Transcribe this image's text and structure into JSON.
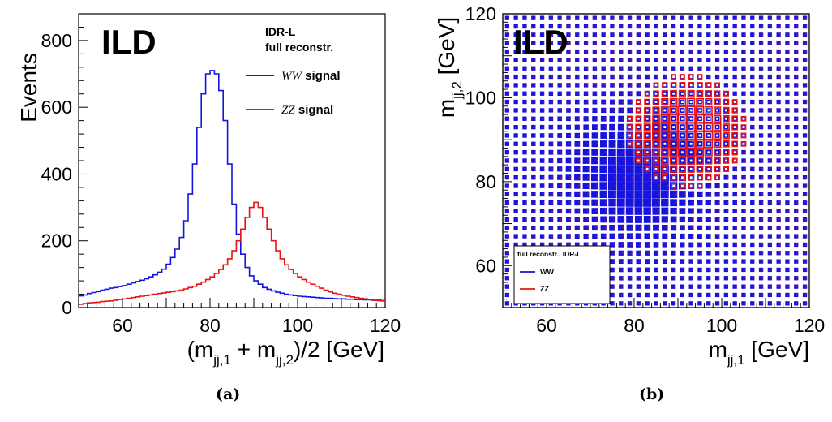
{
  "colors": {
    "ww": "#1414e0",
    "zz": "#e81414"
  },
  "chart_data": [
    {
      "type": "line",
      "panel": "(a)",
      "watermark": "ILD",
      "ylabel": "Events",
      "xlabel_parts": [
        "(m",
        "jj,1",
        " + m",
        "jj,2",
        ")/2 [GeV]"
      ],
      "xlim": [
        50,
        120
      ],
      "ylim": [
        0,
        880
      ],
      "xticks": [
        60,
        80,
        100,
        120
      ],
      "yticks": [
        0,
        200,
        400,
        600,
        800
      ],
      "legend": {
        "header1": "IDR-L",
        "header2": "full reconstr.",
        "entries": [
          {
            "math": "WW",
            "text": " signal"
          },
          {
            "math": "ZZ",
            "text": " signal"
          }
        ]
      },
      "x": [
        50,
        51,
        52,
        53,
        54,
        55,
        56,
        57,
        58,
        59,
        60,
        61,
        62,
        63,
        64,
        65,
        66,
        67,
        68,
        69,
        70,
        71,
        72,
        73,
        74,
        75,
        76,
        77,
        78,
        79,
        80,
        81,
        82,
        83,
        84,
        85,
        86,
        87,
        88,
        89,
        90,
        91,
        92,
        93,
        94,
        95,
        96,
        97,
        98,
        99,
        100,
        101,
        102,
        103,
        104,
        105,
        106,
        107,
        108,
        109,
        110,
        111,
        112,
        113,
        114,
        115,
        116,
        117,
        118,
        119
      ],
      "series": [
        {
          "name": "WW signal",
          "color_key": "ww",
          "values": [
            35,
            38,
            42,
            45,
            48,
            52,
            55,
            58,
            60,
            63,
            66,
            70,
            74,
            78,
            82,
            86,
            92,
            98,
            106,
            115,
            130,
            150,
            175,
            210,
            260,
            340,
            430,
            540,
            640,
            700,
            710,
            700,
            650,
            560,
            430,
            310,
            220,
            160,
            120,
            95,
            80,
            70,
            60,
            55,
            50,
            46,
            43,
            40,
            38,
            36,
            34,
            33,
            32,
            31,
            30,
            29,
            28,
            28,
            27,
            26,
            26,
            25,
            25,
            24,
            24,
            23,
            23,
            22,
            22,
            21
          ]
        },
        {
          "name": "ZZ signal",
          "color_key": "zz",
          "values": [
            10,
            12,
            14,
            15,
            16,
            18,
            19,
            20,
            22,
            24,
            26,
            28,
            30,
            32,
            34,
            36,
            38,
            40,
            42,
            44,
            46,
            48,
            50,
            52,
            56,
            60,
            64,
            70,
            76,
            84,
            92,
            102,
            114,
            128,
            146,
            170,
            200,
            235,
            270,
            300,
            315,
            300,
            270,
            235,
            200,
            170,
            146,
            128,
            114,
            102,
            92,
            84,
            76,
            70,
            64,
            58,
            52,
            47,
            43,
            40,
            37,
            34,
            32,
            30,
            28,
            26,
            24,
            22,
            21,
            20
          ]
        }
      ]
    },
    {
      "type": "heatmap",
      "panel": "(b)",
      "watermark": "ILD",
      "xlabel_parts": [
        "m",
        "jj,1",
        " [GeV]"
      ],
      "ylabel_parts": [
        "m",
        "jj,2",
        " [GeV]"
      ],
      "xlim": [
        50,
        120
      ],
      "ylim": [
        50,
        120
      ],
      "xticks": [
        60,
        80,
        100,
        120
      ],
      "yticks": [
        60,
        80,
        100,
        120
      ],
      "bin_width": 2,
      "legend": {
        "header": "full reconstr., IDR-L",
        "entries": [
          "WW",
          "ZZ"
        ]
      },
      "series": [
        {
          "name": "WW",
          "color_key": "ww",
          "peak": [
            81,
            81
          ],
          "width": 8.5,
          "floor": 0.22
        },
        {
          "name": "ZZ",
          "color_key": "zz",
          "peak": [
            92,
            92
          ],
          "width": 7.5,
          "floor": 0.06
        }
      ]
    }
  ]
}
